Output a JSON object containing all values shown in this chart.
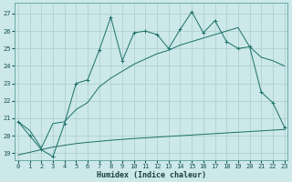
{
  "xlabel": "Humidex (Indice chaleur)",
  "x_ticks": [
    0,
    1,
    2,
    3,
    4,
    5,
    6,
    7,
    8,
    9,
    10,
    11,
    12,
    13,
    14,
    15,
    16,
    17,
    18,
    19,
    20,
    21,
    22,
    23
  ],
  "y_ticks": [
    19,
    20,
    21,
    22,
    23,
    24,
    25,
    26,
    27
  ],
  "xlim": [
    -0.3,
    23.3
  ],
  "ylim": [
    18.6,
    27.6
  ],
  "bg_color": "#cce8e8",
  "grid_color": "#aacccc",
  "line_color": "#1a7068",
  "line1_x": [
    0,
    1,
    2,
    3,
    4,
    5,
    6,
    7,
    8,
    9,
    10,
    11,
    12,
    13,
    14,
    15,
    16,
    17,
    18,
    19,
    20,
    21,
    22,
    23
  ],
  "line1_y": [
    20.8,
    20.0,
    19.2,
    18.8,
    20.7,
    23.0,
    23.2,
    24.9,
    26.8,
    24.3,
    25.9,
    26.0,
    25.8,
    25.0,
    26.1,
    27.1,
    25.9,
    26.6,
    25.4,
    25.0,
    25.1,
    22.5,
    21.9,
    20.5
  ],
  "line2_x": [
    0,
    1,
    2,
    3,
    4,
    5,
    6,
    7,
    8,
    9,
    10,
    11,
    12,
    13,
    14,
    15,
    16,
    17,
    18,
    19,
    20,
    21,
    22,
    23
  ],
  "line2_y": [
    20.8,
    20.3,
    19.3,
    20.7,
    20.8,
    21.5,
    21.9,
    22.8,
    23.3,
    23.7,
    24.1,
    24.4,
    24.7,
    24.9,
    25.2,
    25.4,
    25.6,
    25.8,
    26.0,
    26.2,
    25.1,
    24.5,
    24.3,
    24.0
  ],
  "line3_x": [
    0,
    1,
    2,
    3,
    4,
    5,
    6,
    7,
    8,
    9,
    10,
    11,
    12,
    13,
    14,
    15,
    16,
    17,
    18,
    19,
    20,
    21,
    22,
    23
  ],
  "line3_y": [
    18.9,
    19.05,
    19.2,
    19.35,
    19.45,
    19.55,
    19.62,
    19.68,
    19.74,
    19.79,
    19.84,
    19.88,
    19.92,
    19.96,
    20.0,
    20.04,
    20.08,
    20.12,
    20.16,
    20.2,
    20.24,
    20.28,
    20.32,
    20.36
  ]
}
